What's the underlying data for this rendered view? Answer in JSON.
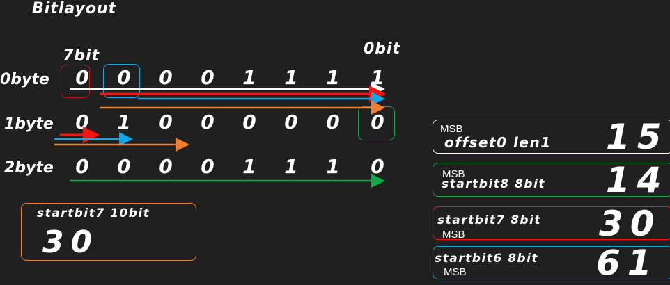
{
  "title": "Bitlayout",
  "msb_bit_label": "7bit",
  "lsb_bit_label": "0bit",
  "rows": [
    {
      "label": "0byte",
      "bits": [
        "0",
        "0",
        "0",
        "0",
        "1",
        "1",
        "1",
        "1"
      ]
    },
    {
      "label": "1byte",
      "bits": [
        "0",
        "1",
        "0",
        "0",
        "0",
        "0",
        "0",
        "0"
      ]
    },
    {
      "label": "2byte",
      "bits": [
        "0",
        "0",
        "0",
        "0",
        "1",
        "1",
        "1",
        "0"
      ]
    }
  ],
  "colors": {
    "white": "#ffffff",
    "red": "#ff1010",
    "blue": "#12a8e8",
    "orange": "#f08030",
    "green": "#10a848",
    "background": "#202020"
  },
  "left_card": {
    "desc": "startbit7 10bit",
    "value": "30",
    "color": "#f08030"
  },
  "cards": [
    {
      "msb": "MSB",
      "desc": "offset0 len1",
      "value": "15",
      "color": "#ffffff"
    },
    {
      "msb": "MSB",
      "desc": "startbit8 8bit",
      "value": "14",
      "color": "#10a848"
    },
    {
      "msb": "MSB",
      "desc": "startbit7 8bit",
      "value": "30",
      "color": "#ff1010"
    },
    {
      "msb": "MSB",
      "desc": "startbit6 8bit",
      "value": "61",
      "color": "#12a8e8"
    }
  ]
}
